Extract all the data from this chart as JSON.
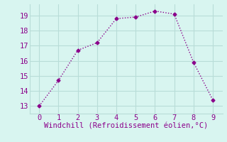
{
  "x": [
    0,
    1,
    2,
    3,
    4,
    5,
    6,
    7,
    8,
    9
  ],
  "y": [
    13.0,
    14.7,
    16.7,
    17.2,
    18.8,
    18.9,
    19.3,
    19.1,
    15.9,
    13.4
  ],
  "line_color": "#8B008B",
  "marker": "D",
  "marker_size": 2.5,
  "bg_color": "#d8f5f0",
  "grid_color": "#b8ddd8",
  "xlabel": "Windchill (Refroidissement éolien,°C)",
  "xlabel_color": "#8B008B",
  "xlabel_fontsize": 7.5,
  "tick_color": "#8B008B",
  "tick_labelsize": 7.5,
  "xlim": [
    -0.5,
    9.5
  ],
  "ylim": [
    12.5,
    19.75
  ],
  "yticks": [
    13,
    14,
    15,
    16,
    17,
    18,
    19
  ],
  "xticks": [
    0,
    1,
    2,
    3,
    4,
    5,
    6,
    7,
    8,
    9
  ],
  "linewidth": 1.0
}
